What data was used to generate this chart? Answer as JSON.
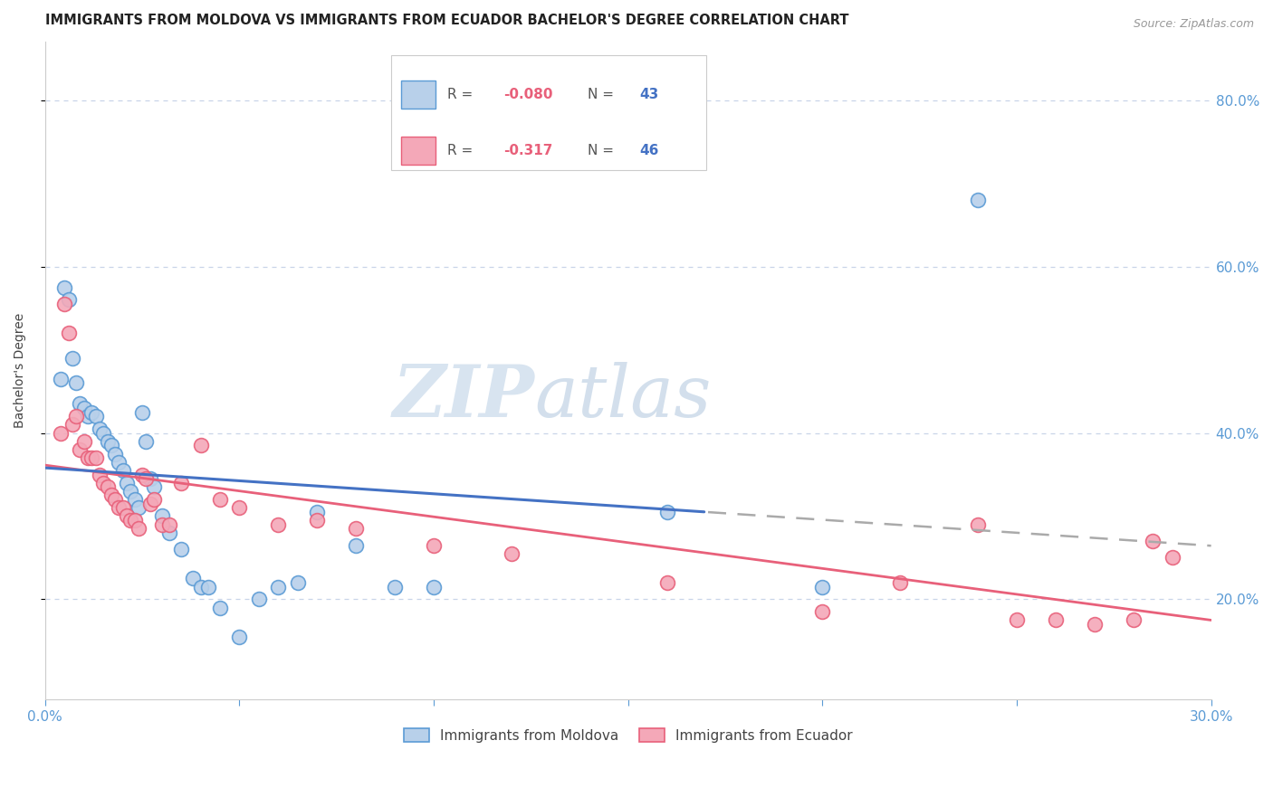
{
  "title": "IMMIGRANTS FROM MOLDOVA VS IMMIGRANTS FROM ECUADOR BACHELOR'S DEGREE CORRELATION CHART",
  "source": "Source: ZipAtlas.com",
  "ylabel": "Bachelor's Degree",
  "xlim": [
    0.0,
    0.3
  ],
  "ylim": [
    0.08,
    0.87
  ],
  "ytick_labels": [
    "20.0%",
    "40.0%",
    "60.0%",
    "80.0%"
  ],
  "ytick_values": [
    0.2,
    0.4,
    0.6,
    0.8
  ],
  "moldova_color": "#b8d0ea",
  "ecuador_color": "#f4a8b8",
  "moldova_edge_color": "#5b9bd5",
  "ecuador_edge_color": "#e8607a",
  "moldova_line_color": "#4472c4",
  "ecuador_line_color": "#e8607a",
  "dashed_line_color": "#aaaaaa",
  "R_moldova": -0.08,
  "N_moldova": 43,
  "R_ecuador": -0.317,
  "N_ecuador": 46,
  "background_color": "#ffffff",
  "grid_color": "#c8d4e8",
  "watermark_color": "#d8e4f0",
  "title_color": "#222222",
  "label_color": "#444444",
  "tick_color": "#5b9bd5",
  "moldova_x": [
    0.004,
    0.005,
    0.006,
    0.007,
    0.008,
    0.009,
    0.01,
    0.011,
    0.012,
    0.013,
    0.014,
    0.015,
    0.016,
    0.017,
    0.018,
    0.019,
    0.02,
    0.021,
    0.022,
    0.023,
    0.024,
    0.025,
    0.026,
    0.027,
    0.028,
    0.03,
    0.032,
    0.035,
    0.038,
    0.04,
    0.042,
    0.045,
    0.05,
    0.055,
    0.06,
    0.065,
    0.07,
    0.08,
    0.09,
    0.1,
    0.16,
    0.2,
    0.24
  ],
  "moldova_y": [
    0.465,
    0.575,
    0.56,
    0.49,
    0.46,
    0.435,
    0.43,
    0.42,
    0.425,
    0.42,
    0.405,
    0.4,
    0.39,
    0.385,
    0.375,
    0.365,
    0.355,
    0.34,
    0.33,
    0.32,
    0.31,
    0.425,
    0.39,
    0.345,
    0.335,
    0.3,
    0.28,
    0.26,
    0.225,
    0.215,
    0.215,
    0.19,
    0.155,
    0.2,
    0.215,
    0.22,
    0.305,
    0.265,
    0.215,
    0.215,
    0.305,
    0.215,
    0.68
  ],
  "ecuador_x": [
    0.004,
    0.005,
    0.006,
    0.007,
    0.008,
    0.009,
    0.01,
    0.011,
    0.012,
    0.013,
    0.014,
    0.015,
    0.016,
    0.017,
    0.018,
    0.019,
    0.02,
    0.021,
    0.022,
    0.023,
    0.024,
    0.025,
    0.026,
    0.027,
    0.028,
    0.03,
    0.032,
    0.035,
    0.04,
    0.045,
    0.05,
    0.06,
    0.07,
    0.08,
    0.1,
    0.12,
    0.16,
    0.2,
    0.22,
    0.24,
    0.25,
    0.26,
    0.27,
    0.28,
    0.285,
    0.29
  ],
  "ecuador_y": [
    0.4,
    0.555,
    0.52,
    0.41,
    0.42,
    0.38,
    0.39,
    0.37,
    0.37,
    0.37,
    0.35,
    0.34,
    0.335,
    0.325,
    0.32,
    0.31,
    0.31,
    0.3,
    0.295,
    0.295,
    0.285,
    0.35,
    0.345,
    0.315,
    0.32,
    0.29,
    0.29,
    0.34,
    0.385,
    0.32,
    0.31,
    0.29,
    0.295,
    0.285,
    0.265,
    0.255,
    0.22,
    0.185,
    0.22,
    0.29,
    0.175,
    0.175,
    0.17,
    0.175,
    0.27,
    0.25
  ]
}
